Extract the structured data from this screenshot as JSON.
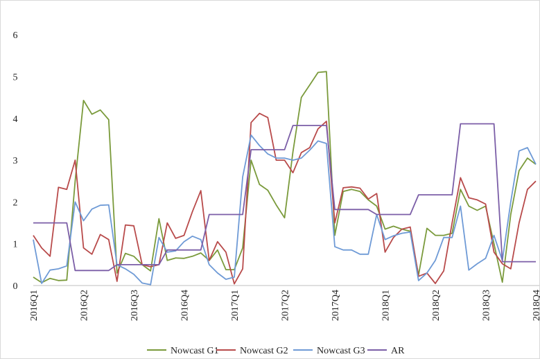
{
  "chart_data": {
    "type": "line",
    "categories": [
      "2016Q1",
      null,
      null,
      null,
      null,
      null,
      "2016Q2",
      null,
      null,
      null,
      null,
      null,
      "2016Q3",
      null,
      null,
      null,
      null,
      null,
      "2016Q4",
      null,
      null,
      null,
      null,
      null,
      "2017Q1",
      null,
      null,
      null,
      null,
      null,
      "2017Q2",
      null,
      null,
      null,
      null,
      null,
      "2017Q4",
      null,
      null,
      null,
      null,
      null,
      "2018Q1",
      null,
      null,
      null,
      null,
      null,
      "2018Q2",
      null,
      null,
      null,
      null,
      null,
      "2018Q3",
      null,
      null,
      null,
      null,
      null,
      "2018Q4"
    ],
    "ylim": [
      0,
      6.3
    ],
    "yticks": [
      0,
      1,
      2,
      3,
      4,
      5,
      6
    ],
    "legend": "bottom",
    "series": [
      {
        "name": "Nowcast G1",
        "color": "#7a9a3b",
        "values": [
          0.2,
          0.07,
          0.17,
          0.12,
          0.13,
          2.5,
          4.43,
          4.1,
          4.2,
          3.97,
          0.3,
          0.77,
          0.7,
          0.5,
          0.35,
          1.6,
          0.6,
          0.66,
          0.65,
          0.7,
          0.78,
          0.6,
          0.85,
          0.38,
          0.38,
          0.9,
          3.0,
          2.42,
          2.28,
          1.93,
          1.62,
          3.2,
          4.5,
          4.8,
          5.1,
          5.12,
          1.2,
          2.25,
          2.3,
          2.25,
          2.05,
          1.9,
          1.35,
          1.42,
          1.35,
          1.3,
          0.25,
          1.37,
          1.2,
          1.2,
          1.25,
          2.3,
          1.9,
          1.8,
          1.9,
          1.0,
          0.08,
          1.7,
          2.75,
          3.05,
          2.9
        ]
      },
      {
        "name": "Nowcast G2",
        "color": "#b84a4a",
        "values": [
          1.2,
          0.9,
          0.7,
          2.35,
          2.3,
          3.0,
          0.9,
          0.75,
          1.22,
          1.1,
          0.1,
          1.45,
          1.43,
          0.5,
          0.45,
          0.5,
          1.5,
          1.13,
          1.2,
          1.77,
          2.27,
          0.6,
          1.05,
          0.8,
          0.04,
          0.4,
          3.9,
          4.12,
          4.02,
          3.0,
          3.0,
          2.7,
          3.18,
          3.3,
          3.75,
          3.93,
          1.5,
          2.34,
          2.36,
          2.33,
          2.07,
          2.2,
          0.8,
          1.15,
          1.35,
          1.4,
          0.22,
          0.3,
          0.05,
          0.35,
          1.5,
          2.58,
          2.1,
          2.05,
          1.95,
          0.8,
          0.52,
          0.4,
          1.5,
          2.3,
          2.5
        ]
      },
      {
        "name": "Nowcast G3",
        "color": "#6e9ad6",
        "values": [
          1.1,
          0.05,
          0.37,
          0.4,
          0.47,
          2.0,
          1.55,
          1.83,
          1.92,
          1.93,
          0.5,
          0.4,
          0.27,
          0.06,
          0.02,
          1.15,
          0.8,
          0.83,
          1.05,
          1.18,
          1.1,
          0.5,
          0.3,
          0.15,
          0.2,
          2.6,
          3.6,
          3.35,
          3.15,
          3.05,
          3.05,
          3.0,
          3.05,
          3.24,
          3.46,
          3.4,
          0.93,
          0.85,
          0.85,
          0.75,
          0.75,
          1.7,
          1.1,
          1.19,
          1.25,
          1.28,
          0.12,
          0.3,
          0.6,
          1.15,
          1.15,
          1.9,
          0.37,
          0.52,
          0.65,
          1.2,
          0.6,
          2.0,
          3.22,
          3.3,
          2.9
        ]
      },
      {
        "name": "AR",
        "color": "#7b5ea7",
        "values": [
          1.5,
          1.5,
          1.5,
          1.5,
          1.5,
          0.36,
          0.36,
          0.36,
          0.36,
          0.36,
          0.5,
          0.5,
          0.5,
          0.5,
          0.5,
          0.5,
          0.85,
          0.85,
          0.85,
          0.85,
          0.85,
          1.7,
          1.7,
          1.7,
          1.7,
          1.7,
          3.25,
          3.25,
          3.25,
          3.25,
          3.25,
          3.83,
          3.83,
          3.83,
          3.83,
          3.83,
          1.82,
          1.82,
          1.82,
          1.82,
          1.82,
          1.7,
          1.7,
          1.7,
          1.7,
          1.7,
          2.17,
          2.17,
          2.17,
          2.17,
          2.17,
          3.87,
          3.87,
          3.87,
          3.87,
          3.87,
          0.57,
          0.57,
          0.57,
          0.57,
          0.57
        ]
      }
    ]
  }
}
